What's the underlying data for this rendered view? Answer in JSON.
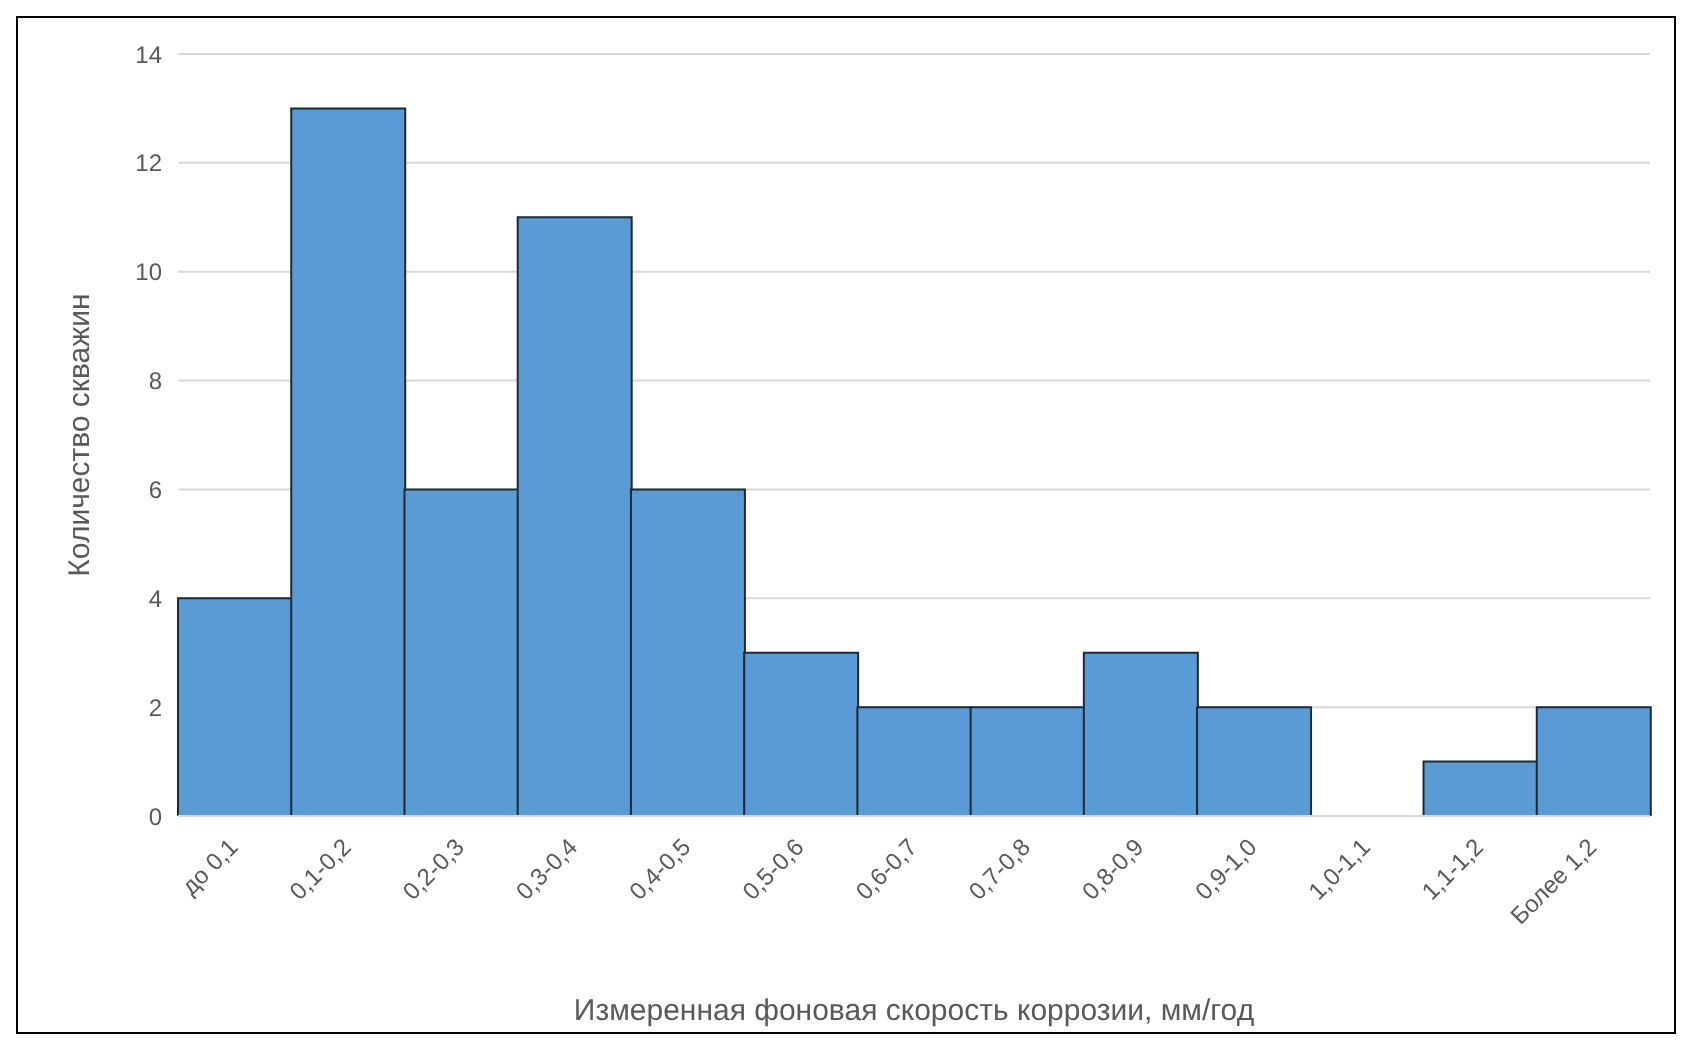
{
  "chart_data": {
    "type": "bar",
    "xlabel": "Измеренная фоновая скорость коррозии, мм/год",
    "ylabel": "Количество скважин",
    "categories": [
      "до 0,1",
      "0,1-0,2",
      "0,2-0,3",
      "0,3-0,4",
      "0,4-0,5",
      "0,5-0,6",
      "0,6-0,7",
      "0,7-0,8",
      "0,8-0,9",
      "0,9-1,0",
      "1,0-1,1",
      "1,1-1,2",
      "Более 1,2"
    ],
    "values": [
      4,
      13,
      6,
      11,
      6,
      3,
      2,
      2,
      3,
      2,
      0,
      1,
      2
    ],
    "color": "#5b9bd5",
    "ylim": [
      0,
      14
    ],
    "yticks": [
      0,
      2,
      4,
      6,
      8,
      10,
      12,
      14
    ],
    "grid": "y"
  }
}
